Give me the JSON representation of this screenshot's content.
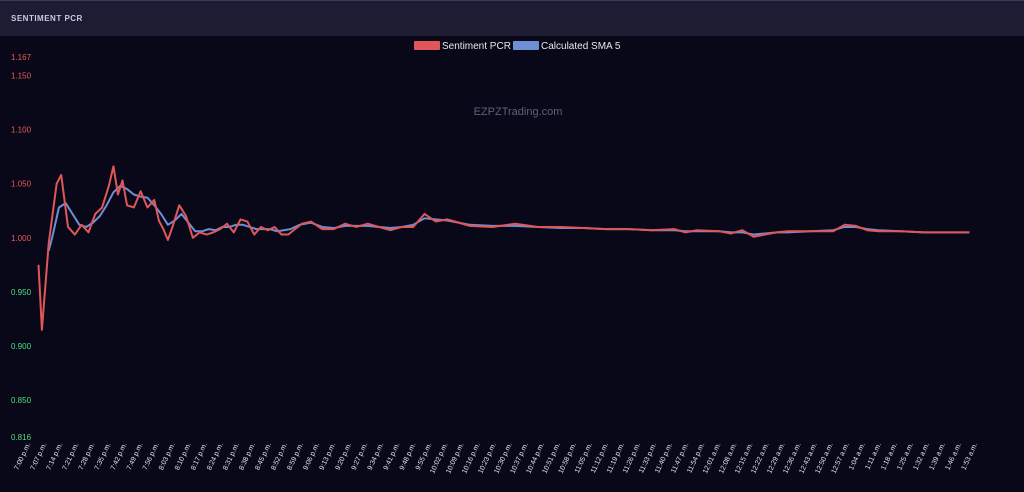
{
  "panel": {
    "title": "SENTIMENT PCR"
  },
  "colors": {
    "background": "#090818",
    "header": "#1e1c33",
    "pcr_line": "#e15759",
    "sma_line": "#6f8fd4",
    "tick_above_one": "#e85c55",
    "tick_below_one": "#4ee07e",
    "x_tick": "#e8e8e8",
    "watermark": "#5e5f7a"
  },
  "chart_data": {
    "type": "line",
    "watermark": "EZPZTrading.com",
    "legend_position": "top-center",
    "grid": false,
    "ylim": [
      0.816,
      1.167
    ],
    "y_ticks": [
      1.167,
      1.15,
      1.1,
      1.05,
      1.0,
      0.95,
      0.9,
      0.85,
      0.816
    ],
    "y_tick_labels": [
      "1.167",
      "1.150",
      "1.100",
      "1.050",
      "1.000",
      "0.950",
      "0.900",
      "0.850",
      "0.816"
    ],
    "x_tick_labels": [
      "7:00 p.m.",
      "7:07 p.m.",
      "7:14 p.m.",
      "7:21 p.m.",
      "7:28 p.m.",
      "7:35 p.m.",
      "7:42 p.m.",
      "7:49 p.m.",
      "7:56 p.m.",
      "8:03 p.m.",
      "8:10 p.m.",
      "8:17 p.m.",
      "8:24 p.m.",
      "8:31 p.m.",
      "8:38 p.m.",
      "8:45 p.m.",
      "8:52 p.m.",
      "8:59 p.m.",
      "9:06 p.m.",
      "9:13 p.m.",
      "9:20 p.m.",
      "9:27 p.m.",
      "9:34 p.m.",
      "9:41 p.m.",
      "9:48 p.m.",
      "9:55 p.m.",
      "10:02 p.m.",
      "10:09 p.m.",
      "10:16 p.m.",
      "10:23 p.m.",
      "10:30 p.m.",
      "10:37 p.m.",
      "10:44 p.m.",
      "10:51 p.m.",
      "10:58 p.m.",
      "11:05 p.m.",
      "11:12 p.m.",
      "11:19 p.m.",
      "11:26 p.m.",
      "11:33 p.m.",
      "11:40 p.m.",
      "11:47 p.m.",
      "11:54 p.m.",
      "12:01 a.m.",
      "12:08 a.m.",
      "12:15 a.m.",
      "12:22 a.m.",
      "12:29 a.m.",
      "12:36 a.m.",
      "12:43 a.m.",
      "12:50 a.m.",
      "12:57 a.m.",
      "1:04 a.m.",
      "1:11 a.m.",
      "1:18 a.m.",
      "1:25 a.m.",
      "1:32 a.m.",
      "1:39 a.m.",
      "1:46 a.m.",
      "1:53 a.m."
    ],
    "series": [
      {
        "name": "Sentiment PCR",
        "points": [
          [
            0,
            0.975
          ],
          [
            0.15,
            0.915
          ],
          [
            0.45,
            0.995
          ],
          [
            0.8,
            1.05
          ],
          [
            1.0,
            1.058
          ],
          [
            1.3,
            1.01
          ],
          [
            1.6,
            1.003
          ],
          [
            1.9,
            1.012
          ],
          [
            2.2,
            1.005
          ],
          [
            2.5,
            1.022
          ],
          [
            2.8,
            1.028
          ],
          [
            3.1,
            1.048
          ],
          [
            3.3,
            1.066
          ],
          [
            3.5,
            1.04
          ],
          [
            3.7,
            1.053
          ],
          [
            3.9,
            1.03
          ],
          [
            4.2,
            1.028
          ],
          [
            4.5,
            1.043
          ],
          [
            4.8,
            1.028
          ],
          [
            5.1,
            1.035
          ],
          [
            5.3,
            1.016
          ],
          [
            5.5,
            1.008
          ],
          [
            5.7,
            0.998
          ],
          [
            5.9,
            1.01
          ],
          [
            6.2,
            1.03
          ],
          [
            6.5,
            1.02
          ],
          [
            6.8,
            1.0
          ],
          [
            7.1,
            1.005
          ],
          [
            7.4,
            1.003
          ],
          [
            7.7,
            1.005
          ],
          [
            8.0,
            1.008
          ],
          [
            8.3,
            1.013
          ],
          [
            8.6,
            1.005
          ],
          [
            8.9,
            1.017
          ],
          [
            9.2,
            1.015
          ],
          [
            9.5,
            1.003
          ],
          [
            9.8,
            1.01
          ],
          [
            10.1,
            1.007
          ],
          [
            10.4,
            1.01
          ],
          [
            10.7,
            1.003
          ],
          [
            11.0,
            1.003
          ],
          [
            11.3,
            1.008
          ],
          [
            11.6,
            1.013
          ],
          [
            12.0,
            1.015
          ],
          [
            12.5,
            1.008
          ],
          [
            13.0,
            1.008
          ],
          [
            13.5,
            1.013
          ],
          [
            14.0,
            1.01
          ],
          [
            14.5,
            1.013
          ],
          [
            15.0,
            1.01
          ],
          [
            15.5,
            1.007
          ],
          [
            16.0,
            1.01
          ],
          [
            16.5,
            1.01
          ],
          [
            17.0,
            1.022
          ],
          [
            17.5,
            1.015
          ],
          [
            18.0,
            1.017
          ],
          [
            18.5,
            1.014
          ],
          [
            19.0,
            1.011
          ],
          [
            20.0,
            1.01
          ],
          [
            21.0,
            1.013
          ],
          [
            22.0,
            1.01
          ],
          [
            23.0,
            1.01
          ],
          [
            24.0,
            1.009
          ],
          [
            25.0,
            1.008
          ],
          [
            26.0,
            1.008
          ],
          [
            27.0,
            1.007
          ],
          [
            28.0,
            1.008
          ],
          [
            28.5,
            1.005
          ],
          [
            29.0,
            1.007
          ],
          [
            30.0,
            1.006
          ],
          [
            30.5,
            1.004
          ],
          [
            31.0,
            1.007
          ],
          [
            31.5,
            1.001
          ],
          [
            32.0,
            1.003
          ],
          [
            32.5,
            1.005
          ],
          [
            33.0,
            1.006
          ],
          [
            34.0,
            1.006
          ],
          [
            35.0,
            1.006
          ],
          [
            35.5,
            1.012
          ],
          [
            36.0,
            1.011
          ],
          [
            36.5,
            1.007
          ],
          [
            37.0,
            1.006
          ],
          [
            38.0,
            1.006
          ],
          [
            39.0,
            1.005
          ],
          [
            40.0,
            1.005
          ],
          [
            41.0,
            1.005
          ]
        ]
      },
      {
        "name": "Calculated SMA 5",
        "points": [
          [
            0.45,
            0.988
          ],
          [
            0.6,
            1.0
          ],
          [
            0.9,
            1.028
          ],
          [
            1.2,
            1.032
          ],
          [
            1.5,
            1.022
          ],
          [
            1.8,
            1.012
          ],
          [
            2.1,
            1.01
          ],
          [
            2.4,
            1.014
          ],
          [
            2.7,
            1.02
          ],
          [
            3.0,
            1.03
          ],
          [
            3.3,
            1.042
          ],
          [
            3.6,
            1.048
          ],
          [
            3.9,
            1.045
          ],
          [
            4.2,
            1.04
          ],
          [
            4.5,
            1.038
          ],
          [
            4.8,
            1.037
          ],
          [
            5.1,
            1.03
          ],
          [
            5.4,
            1.022
          ],
          [
            5.7,
            1.012
          ],
          [
            6.0,
            1.016
          ],
          [
            6.3,
            1.022
          ],
          [
            6.6,
            1.014
          ],
          [
            6.9,
            1.006
          ],
          [
            7.2,
            1.006
          ],
          [
            7.5,
            1.008
          ],
          [
            7.8,
            1.007
          ],
          [
            8.1,
            1.01
          ],
          [
            8.4,
            1.01
          ],
          [
            8.7,
            1.012
          ],
          [
            9.0,
            1.012
          ],
          [
            9.3,
            1.01
          ],
          [
            9.6,
            1.008
          ],
          [
            9.9,
            1.008
          ],
          [
            10.2,
            1.008
          ],
          [
            10.5,
            1.006
          ],
          [
            10.8,
            1.007
          ],
          [
            11.1,
            1.008
          ],
          [
            11.5,
            1.012
          ],
          [
            12.0,
            1.014
          ],
          [
            12.5,
            1.01
          ],
          [
            13.0,
            1.009
          ],
          [
            13.5,
            1.011
          ],
          [
            14.0,
            1.011
          ],
          [
            14.5,
            1.011
          ],
          [
            15.0,
            1.01
          ],
          [
            15.5,
            1.009
          ],
          [
            16.0,
            1.01
          ],
          [
            16.5,
            1.012
          ],
          [
            17.0,
            1.018
          ],
          [
            17.5,
            1.017
          ],
          [
            18.0,
            1.016
          ],
          [
            18.5,
            1.014
          ],
          [
            19.0,
            1.012
          ],
          [
            20.0,
            1.011
          ],
          [
            21.0,
            1.011
          ],
          [
            22.0,
            1.01
          ],
          [
            23.0,
            1.009
          ],
          [
            24.0,
            1.009
          ],
          [
            25.0,
            1.008
          ],
          [
            26.0,
            1.008
          ],
          [
            27.0,
            1.007
          ],
          [
            28.0,
            1.007
          ],
          [
            28.5,
            1.006
          ],
          [
            29.0,
            1.006
          ],
          [
            30.0,
            1.006
          ],
          [
            30.5,
            1.005
          ],
          [
            31.0,
            1.005
          ],
          [
            31.5,
            1.003
          ],
          [
            32.0,
            1.004
          ],
          [
            32.5,
            1.005
          ],
          [
            33.0,
            1.005
          ],
          [
            34.0,
            1.006
          ],
          [
            35.0,
            1.007
          ],
          [
            35.5,
            1.01
          ],
          [
            36.0,
            1.01
          ],
          [
            36.5,
            1.008
          ],
          [
            37.0,
            1.007
          ],
          [
            38.0,
            1.006
          ],
          [
            39.0,
            1.005
          ],
          [
            40.0,
            1.005
          ],
          [
            41.0,
            1.005
          ]
        ]
      }
    ]
  }
}
